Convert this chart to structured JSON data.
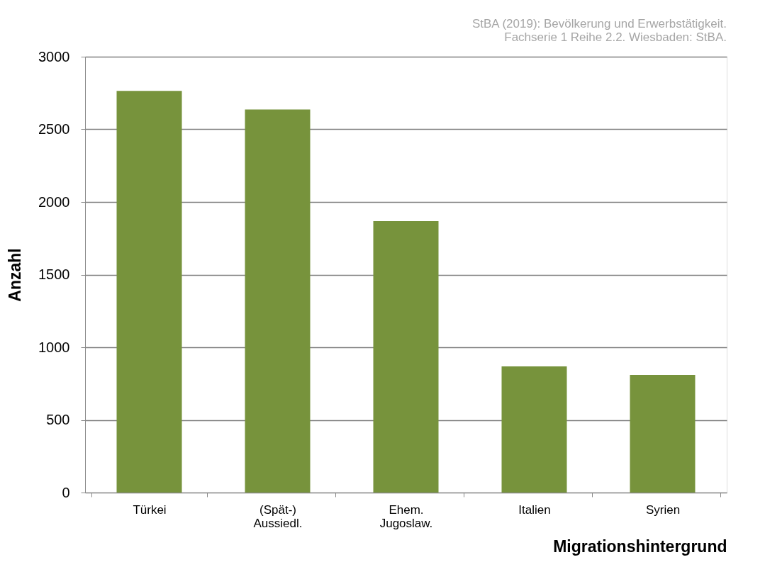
{
  "chart_data": {
    "type": "bar",
    "categories": [
      "Türkei",
      "(Spät-)\nAussiedl.",
      "Ehem.\nJugoslaw.",
      "Italien",
      "Syrien"
    ],
    "values": [
      2765,
      2637,
      1868,
      868,
      810
    ],
    "color": "#77933c",
    "xlabel": "Migrationshintergrund",
    "ylabel": "Anzahl",
    "ylim": [
      0,
      3000
    ],
    "yticks": [
      0,
      500,
      1000,
      1500,
      2000,
      2500,
      3000
    ],
    "grid": "y",
    "annotations": [
      "StBA (2019): Bevölkerung und Erwerbstätigkeit.\nFachserie 1 Reihe 2.2. Wiesbaden: StBA."
    ]
  }
}
